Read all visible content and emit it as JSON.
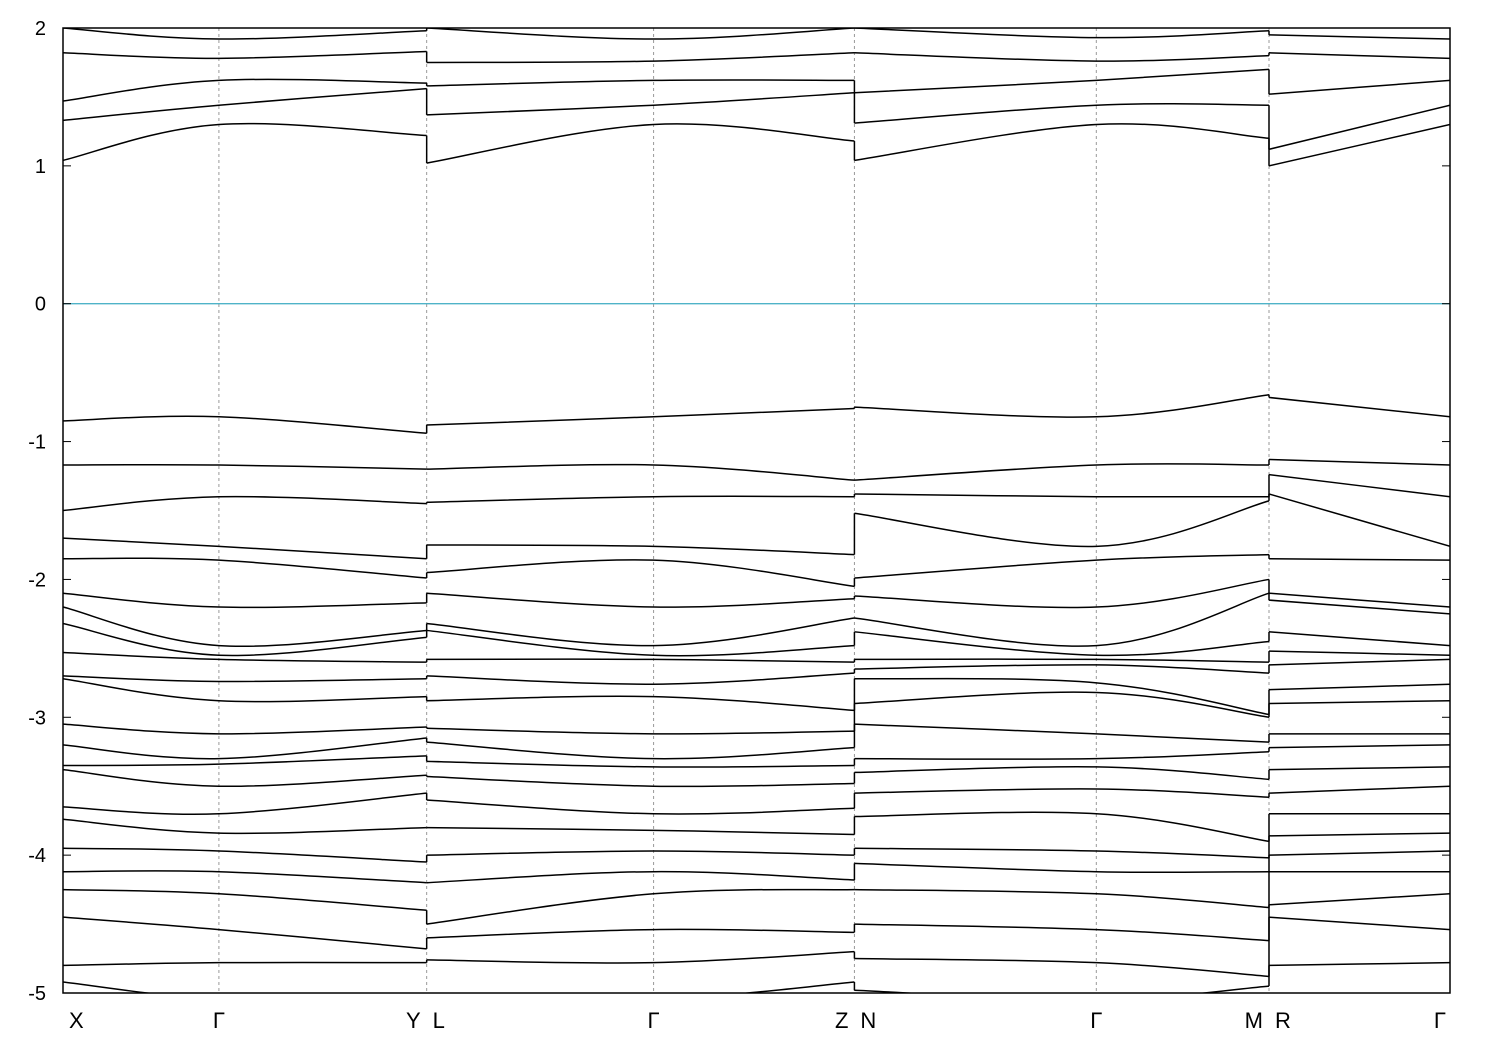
{
  "chart_data": {
    "type": "line",
    "title": "",
    "xlabel": "",
    "ylabel": "",
    "ylim": [
      -5,
      2
    ],
    "yticks": [
      {
        "value": 2,
        "label": "2"
      },
      {
        "value": 1,
        "label": "1"
      },
      {
        "value": 0,
        "label": "0"
      },
      {
        "value": -1,
        "label": "-1"
      },
      {
        "value": -2,
        "label": "-2"
      },
      {
        "value": -3,
        "label": "-3"
      },
      {
        "value": -4,
        "label": "-4"
      },
      {
        "value": -5,
        "label": "-5"
      }
    ],
    "kpath": {
      "points": [
        {
          "label": "X",
          "k": 0.0
        },
        {
          "label": "Γ",
          "k": 0.1124
        },
        {
          "label": "Y",
          "k": 0.2622
        },
        {
          "label": "L",
          "k": 0.2622
        },
        {
          "label": "Γ",
          "k": 0.4258
        },
        {
          "label": "Z",
          "k": 0.5706
        },
        {
          "label": "N",
          "k": 0.5706
        },
        {
          "label": "Γ",
          "k": 0.745
        },
        {
          "label": "M",
          "k": 0.8695
        },
        {
          "label": "R",
          "k": 0.8695
        },
        {
          "label": "Γ",
          "k": 1.0
        }
      ],
      "segment_breaks": [
        0.2622,
        0.5706,
        0.8695
      ]
    },
    "fermi_level": {
      "value": 0,
      "color": "#4fb3c8"
    },
    "band_color": "#000000",
    "grid": "vertical dashed at high-symmetry points",
    "segments": [
      {
        "x": [
          0.0,
          0.1124,
          0.2622
        ],
        "bands": [
          [
            2.0,
            1.92,
            1.98
          ],
          [
            1.82,
            1.78,
            1.83
          ],
          [
            1.47,
            1.62,
            1.6
          ],
          [
            1.33,
            1.44,
            1.56
          ],
          [
            1.04,
            1.3,
            1.22
          ],
          [
            -0.85,
            -0.82,
            -0.94
          ],
          [
            -1.17,
            -1.17,
            -1.2
          ],
          [
            -1.5,
            -1.4,
            -1.45
          ],
          [
            -1.7,
            -1.76,
            -1.85
          ],
          [
            -1.85,
            -1.86,
            -1.99
          ],
          [
            -2.1,
            -2.2,
            -2.17
          ],
          [
            -2.2,
            -2.48,
            -2.37
          ],
          [
            -2.32,
            -2.55,
            -2.42
          ],
          [
            -2.53,
            -2.58,
            -2.6
          ],
          [
            -2.7,
            -2.74,
            -2.72
          ],
          [
            -2.72,
            -2.88,
            -2.85
          ],
          [
            -3.05,
            -3.12,
            -3.07
          ],
          [
            -3.2,
            -3.3,
            -3.15
          ],
          [
            -3.35,
            -3.34,
            -3.28
          ],
          [
            -3.38,
            -3.5,
            -3.42
          ],
          [
            -3.65,
            -3.7,
            -3.55
          ],
          [
            -3.74,
            -3.84,
            -3.8
          ],
          [
            -3.95,
            -3.97,
            -4.05
          ],
          [
            -4.12,
            -4.12,
            -4.2
          ],
          [
            -4.25,
            -4.28,
            -4.4
          ],
          [
            -4.45,
            -4.54,
            -4.68
          ],
          [
            -4.8,
            -4.78,
            -4.78
          ],
          [
            -4.92,
            -5.05,
            -5.1
          ]
        ]
      },
      {
        "x": [
          0.2622,
          0.4258,
          0.5706
        ],
        "bands": [
          [
            2.0,
            1.92,
            2.0
          ],
          [
            1.75,
            1.76,
            1.82
          ],
          [
            1.58,
            1.62,
            1.62
          ],
          [
            1.37,
            1.44,
            1.53
          ],
          [
            1.02,
            1.3,
            1.18
          ],
          [
            -0.88,
            -0.82,
            -0.76
          ],
          [
            -1.2,
            -1.17,
            -1.28
          ],
          [
            -1.44,
            -1.4,
            -1.4
          ],
          [
            -1.75,
            -1.76,
            -1.82
          ],
          [
            -1.95,
            -1.86,
            -2.05
          ],
          [
            -2.1,
            -2.2,
            -2.14
          ],
          [
            -2.32,
            -2.48,
            -2.28
          ],
          [
            -2.37,
            -2.55,
            -2.48
          ],
          [
            -2.58,
            -2.58,
            -2.6
          ],
          [
            -2.7,
            -2.76,
            -2.68
          ],
          [
            -2.88,
            -2.85,
            -2.95
          ],
          [
            -3.08,
            -3.12,
            -3.1
          ],
          [
            -3.18,
            -3.3,
            -3.22
          ],
          [
            -3.32,
            -3.36,
            -3.35
          ],
          [
            -3.43,
            -3.5,
            -3.48
          ],
          [
            -3.6,
            -3.7,
            -3.66
          ],
          [
            -3.8,
            -3.82,
            -3.85
          ],
          [
            -4.0,
            -3.97,
            -4.0
          ],
          [
            -4.2,
            -4.12,
            -4.18
          ],
          [
            -4.5,
            -4.28,
            -4.25
          ],
          [
            -4.6,
            -4.54,
            -4.56
          ],
          [
            -4.76,
            -4.78,
            -4.7
          ],
          [
            -5.05,
            -5.05,
            -4.92
          ]
        ]
      },
      {
        "x": [
          0.5706,
          0.745,
          0.8695
        ],
        "bands": [
          [
            2.0,
            1.93,
            1.98
          ],
          [
            1.82,
            1.76,
            1.8
          ],
          [
            1.53,
            1.62,
            1.7
          ],
          [
            1.31,
            1.44,
            1.44
          ],
          [
            1.04,
            1.3,
            1.2
          ],
          [
            -0.75,
            -0.82,
            -0.66
          ],
          [
            -1.28,
            -1.17,
            -1.17
          ],
          [
            -1.38,
            -1.4,
            -1.4
          ],
          [
            -1.52,
            -1.76,
            -1.43
          ],
          [
            -1.99,
            -1.86,
            -1.82
          ],
          [
            -2.12,
            -2.2,
            -2.0
          ],
          [
            -2.28,
            -2.48,
            -2.1
          ],
          [
            -2.38,
            -2.55,
            -2.45
          ],
          [
            -2.58,
            -2.58,
            -2.6
          ],
          [
            -2.65,
            -2.62,
            -2.68
          ],
          [
            -2.72,
            -2.75,
            -2.98
          ],
          [
            -2.9,
            -2.82,
            -3.0
          ],
          [
            -3.05,
            -3.12,
            -3.18
          ],
          [
            -3.3,
            -3.3,
            -3.25
          ],
          [
            -3.4,
            -3.36,
            -3.45
          ],
          [
            -3.55,
            -3.52,
            -3.58
          ],
          [
            -3.72,
            -3.7,
            -3.9
          ],
          [
            -3.95,
            -3.97,
            -4.02
          ],
          [
            -4.06,
            -4.12,
            -4.12
          ],
          [
            -4.25,
            -4.28,
            -4.38
          ],
          [
            -4.5,
            -4.54,
            -4.62
          ],
          [
            -4.75,
            -4.78,
            -4.88
          ],
          [
            -4.98,
            -5.05,
            -4.95
          ]
        ]
      },
      {
        "x": [
          0.8695,
          1.0
        ],
        "bands": [
          [
            1.95,
            1.92
          ],
          [
            1.82,
            1.78
          ],
          [
            1.52,
            1.62
          ],
          [
            1.12,
            1.44
          ],
          [
            1.0,
            1.3
          ],
          [
            -0.68,
            -0.82
          ],
          [
            -1.13,
            -1.17
          ],
          [
            -1.24,
            -1.4
          ],
          [
            -1.38,
            -1.76
          ],
          [
            -1.85,
            -1.86
          ],
          [
            -2.1,
            -2.2
          ],
          [
            -2.15,
            -2.25
          ],
          [
            -2.38,
            -2.48
          ],
          [
            -2.52,
            -2.55
          ],
          [
            -2.62,
            -2.58
          ],
          [
            -2.8,
            -2.76
          ],
          [
            -2.9,
            -2.88
          ],
          [
            -3.12,
            -3.12
          ],
          [
            -3.22,
            -3.2
          ],
          [
            -3.38,
            -3.36
          ],
          [
            -3.55,
            -3.5
          ],
          [
            -3.7,
            -3.7
          ],
          [
            -3.86,
            -3.84
          ],
          [
            -4.0,
            -3.97
          ],
          [
            -4.12,
            -4.12
          ],
          [
            -4.36,
            -4.28
          ],
          [
            -4.45,
            -4.54
          ],
          [
            -4.8,
            -4.78
          ]
        ]
      }
    ]
  }
}
